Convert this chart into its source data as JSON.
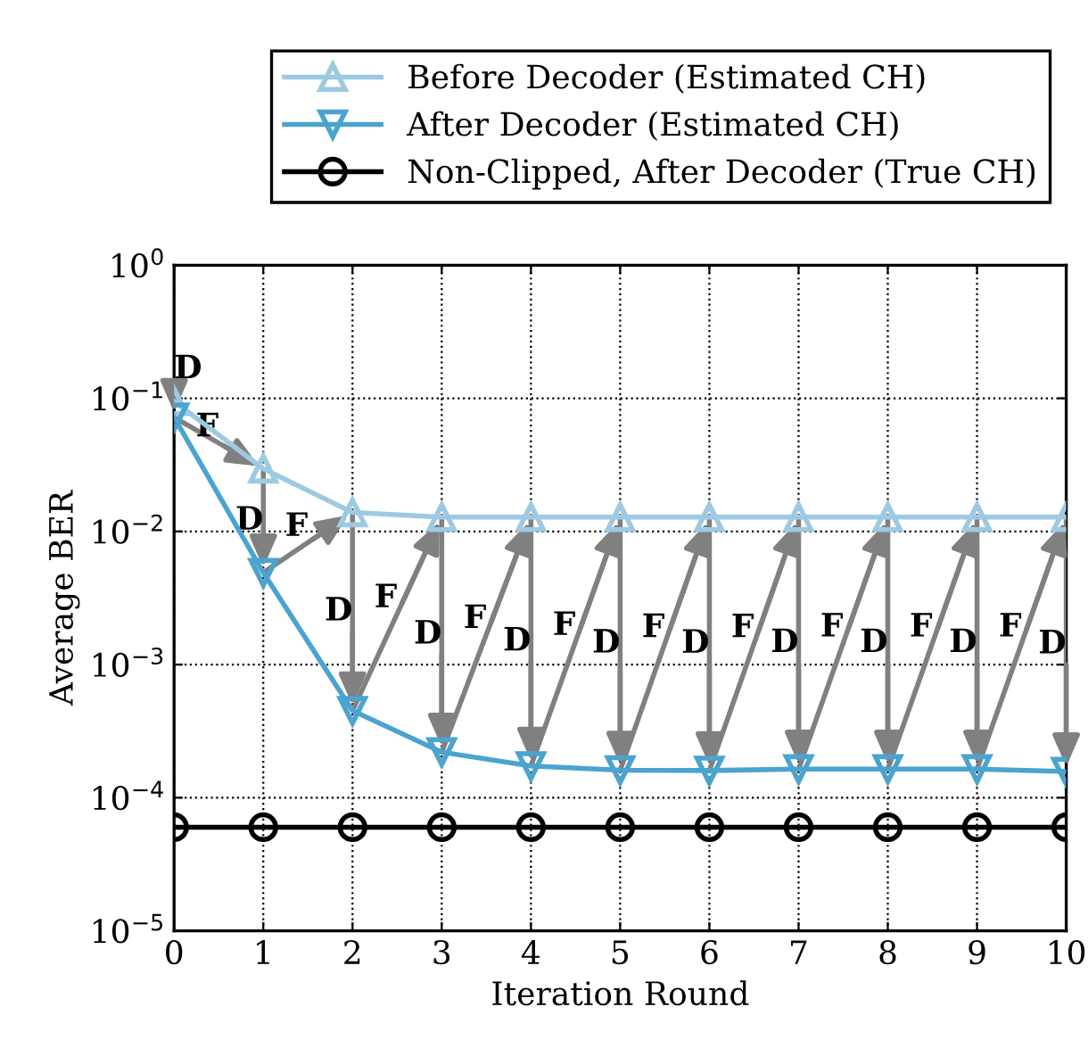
{
  "chart_data": {
    "type": "line",
    "xlabel": "Iteration Round",
    "ylabel": "Average BER",
    "x": [
      0,
      1,
      2,
      3,
      4,
      5,
      6,
      7,
      8,
      9,
      10
    ],
    "series": [
      {
        "name": "Before Decoder (Estimated CH)",
        "color": "#9ecae1",
        "marker": "triangle",
        "values": [
          0.095,
          0.0296,
          0.0139,
          0.0128,
          0.0128,
          0.0128,
          0.0128,
          0.0128,
          0.0128,
          0.0128,
          0.0128
        ]
      },
      {
        "name": "After Decoder (Estimated CH)",
        "color": "#4ba3cf",
        "marker": "triangle_down",
        "values": [
          0.072,
          0.0049,
          0.00045,
          0.00022,
          0.000173,
          0.000161,
          0.00016,
          0.000164,
          0.000164,
          0.000164,
          0.000157
        ]
      },
      {
        "name": "Non-Clipped, After Decoder (True CH)",
        "color": "#000000",
        "marker": "circle",
        "values": [
          6e-05,
          6e-05,
          6e-05,
          6e-05,
          6e-05,
          6e-05,
          6e-05,
          6e-05,
          6e-05,
          6e-05,
          6e-05
        ]
      }
    ],
    "log": "y",
    "xlim": [
      0,
      10
    ],
    "xticks": [
      0,
      1,
      2,
      3,
      4,
      5,
      6,
      7,
      8,
      9,
      10
    ],
    "ylim": [
      1e-05,
      1
    ],
    "yticks": [
      {
        "value": 1e-05,
        "label": "10$^{−5}$"
      },
      {
        "value": 0.0001,
        "label": "10$^{−4}$"
      },
      {
        "value": 0.001,
        "label": "10$^{−3}$"
      },
      {
        "value": 0.01,
        "label": "10$^{−2}$"
      },
      {
        "value": 0.1,
        "label": "10$^{−1}$"
      },
      {
        "value": 1,
        "label": "10$^{0}$"
      }
    ],
    "grid": true,
    "legend": "top",
    "line_style": "solid",
    "annotations": [
      {
        "text": "D",
        "x": 0,
        "y": 0.072
      },
      {
        "text": "F",
        "x": 1,
        "y": 0.0296
      },
      {
        "text": "D",
        "x": 1,
        "y": 0.0049
      },
      {
        "text": "F",
        "x": 2,
        "y": 0.0139
      },
      {
        "text": "D",
        "x": 2,
        "y": 0.00045
      },
      {
        "text": "F",
        "x": 3,
        "y": 0.0128
      },
      {
        "text": "D",
        "x": 3,
        "y": 0.00022
      },
      {
        "text": "F",
        "x": 4,
        "y": 0.0128
      },
      {
        "text": "D",
        "x": 4,
        "y": 0.000173
      },
      {
        "text": "F",
        "x": 5,
        "y": 0.0128
      },
      {
        "text": "D",
        "x": 5,
        "y": 0.000161
      },
      {
        "text": "F",
        "x": 6,
        "y": 0.0128
      },
      {
        "text": "D",
        "x": 6,
        "y": 0.00016
      },
      {
        "text": "F",
        "x": 7,
        "y": 0.0128
      },
      {
        "text": "D",
        "x": 7,
        "y": 0.000164
      },
      {
        "text": "F",
        "x": 8,
        "y": 0.0128
      },
      {
        "text": "D",
        "x": 8,
        "y": 0.000164
      },
      {
        "text": "F",
        "x": 9,
        "y": 0.0128
      },
      {
        "text": "D",
        "x": 9,
        "y": 0.000164
      },
      {
        "text": "F",
        "x": 10,
        "y": 0.0128
      },
      {
        "text": "D",
        "x": 10,
        "y": 0.000157
      }
    ]
  }
}
